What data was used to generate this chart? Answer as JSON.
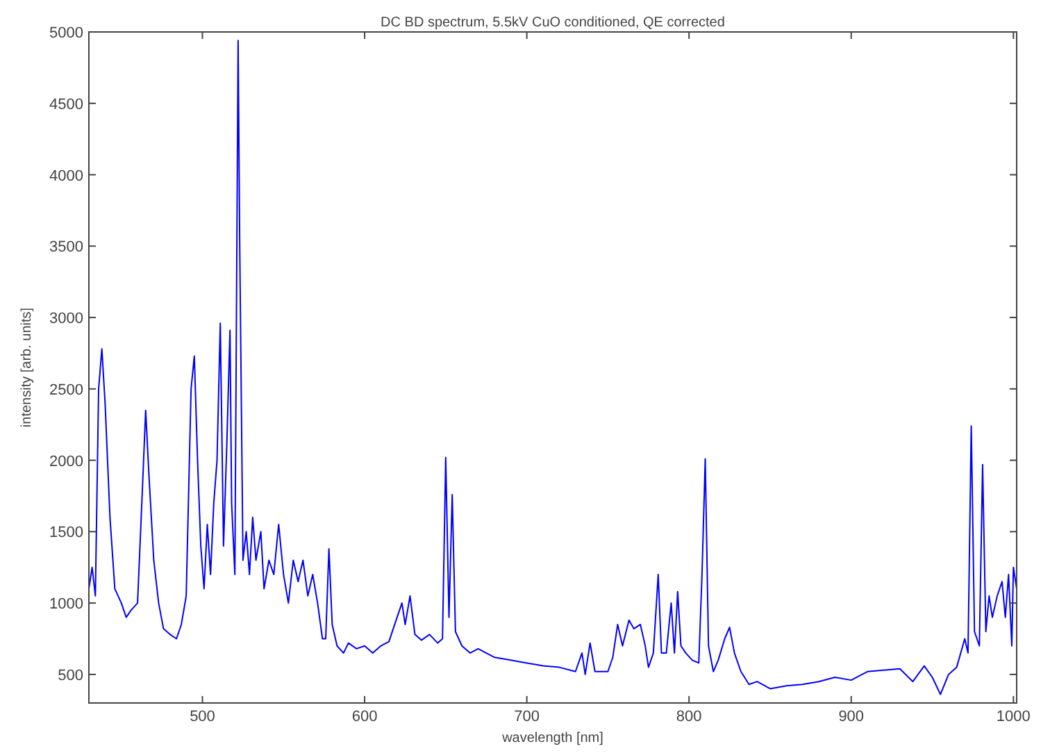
{
  "chart_data": {
    "type": "line",
    "title": "DC BD spectrum, 5.5kV CuO conditioned, QE corrected",
    "xlabel": "wavelength [nm]",
    "ylabel": "intensity [arb. units]",
    "xlim": [
      430,
      1002
    ],
    "ylim": [
      300,
      5000
    ],
    "xticks": [
      500,
      600,
      700,
      800,
      900,
      1000
    ],
    "yticks": [
      500,
      1000,
      1500,
      2000,
      2500,
      3000,
      3500,
      4000,
      4500,
      5000
    ],
    "grid": false,
    "series": [
      {
        "color": "#0000ff",
        "x": [
          430,
          432,
          434,
          436,
          438,
          440,
          443,
          446,
          450,
          453,
          456,
          460,
          463,
          465,
          467,
          470,
          473,
          476,
          480,
          484,
          487,
          490,
          493,
          495,
          497,
          499,
          501,
          503,
          505,
          507,
          509,
          511,
          513,
          515,
          517,
          518,
          520,
          522,
          523,
          525,
          527,
          529,
          531,
          533,
          536,
          538,
          541,
          544,
          547,
          550,
          553,
          556,
          559,
          562,
          565,
          568,
          571,
          574,
          576,
          578,
          580,
          583,
          587,
          590,
          595,
          600,
          605,
          610,
          615,
          620,
          623,
          625,
          628,
          631,
          635,
          640,
          645,
          648,
          650,
          652,
          654,
          656,
          660,
          665,
          670,
          675,
          680,
          690,
          700,
          710,
          720,
          730,
          734,
          736,
          739,
          742,
          750,
          753,
          756,
          759,
          763,
          766,
          770,
          773,
          775,
          778,
          781,
          783,
          786,
          789,
          791,
          793,
          795,
          798,
          802,
          806,
          808,
          810,
          812,
          815,
          818,
          822,
          825,
          828,
          832,
          837,
          842,
          850,
          860,
          870,
          880,
          890,
          900,
          910,
          920,
          930,
          938,
          945,
          950,
          955,
          960,
          965,
          970,
          972,
          974,
          976,
          979,
          981,
          983,
          985,
          987,
          990,
          993,
          995,
          997,
          999,
          1000,
          1002
        ],
        "values": [
          1100,
          1250,
          1050,
          2500,
          2780,
          2400,
          1600,
          1100,
          1000,
          900,
          950,
          1000,
          1800,
          2350,
          1900,
          1300,
          1000,
          820,
          780,
          750,
          850,
          1050,
          2500,
          2730,
          2000,
          1400,
          1100,
          1550,
          1200,
          1700,
          2000,
          2960,
          1400,
          2100,
          2910,
          1700,
          1200,
          4940,
          3500,
          1300,
          1500,
          1200,
          1600,
          1300,
          1500,
          1100,
          1300,
          1200,
          1550,
          1200,
          1000,
          1300,
          1150,
          1300,
          1050,
          1200,
          1000,
          750,
          750,
          1380,
          850,
          700,
          650,
          720,
          680,
          700,
          650,
          700,
          730,
          900,
          1000,
          850,
          1050,
          780,
          740,
          780,
          720,
          750,
          2020,
          900,
          1760,
          800,
          700,
          650,
          680,
          650,
          620,
          600,
          580,
          560,
          550,
          520,
          650,
          500,
          720,
          520,
          520,
          620,
          850,
          700,
          880,
          820,
          850,
          700,
          550,
          650,
          1200,
          650,
          650,
          1000,
          650,
          1080,
          700,
          650,
          600,
          580,
          1200,
          2010,
          700,
          520,
          600,
          750,
          830,
          650,
          520,
          430,
          450,
          400,
          420,
          430,
          450,
          480,
          460,
          520,
          530,
          540,
          450,
          560,
          480,
          360,
          500,
          550,
          750,
          650,
          2240,
          800,
          700,
          1970,
          800,
          1050,
          900,
          1050,
          1150,
          900,
          1200,
          700,
          1250,
          1100
        ]
      }
    ]
  }
}
